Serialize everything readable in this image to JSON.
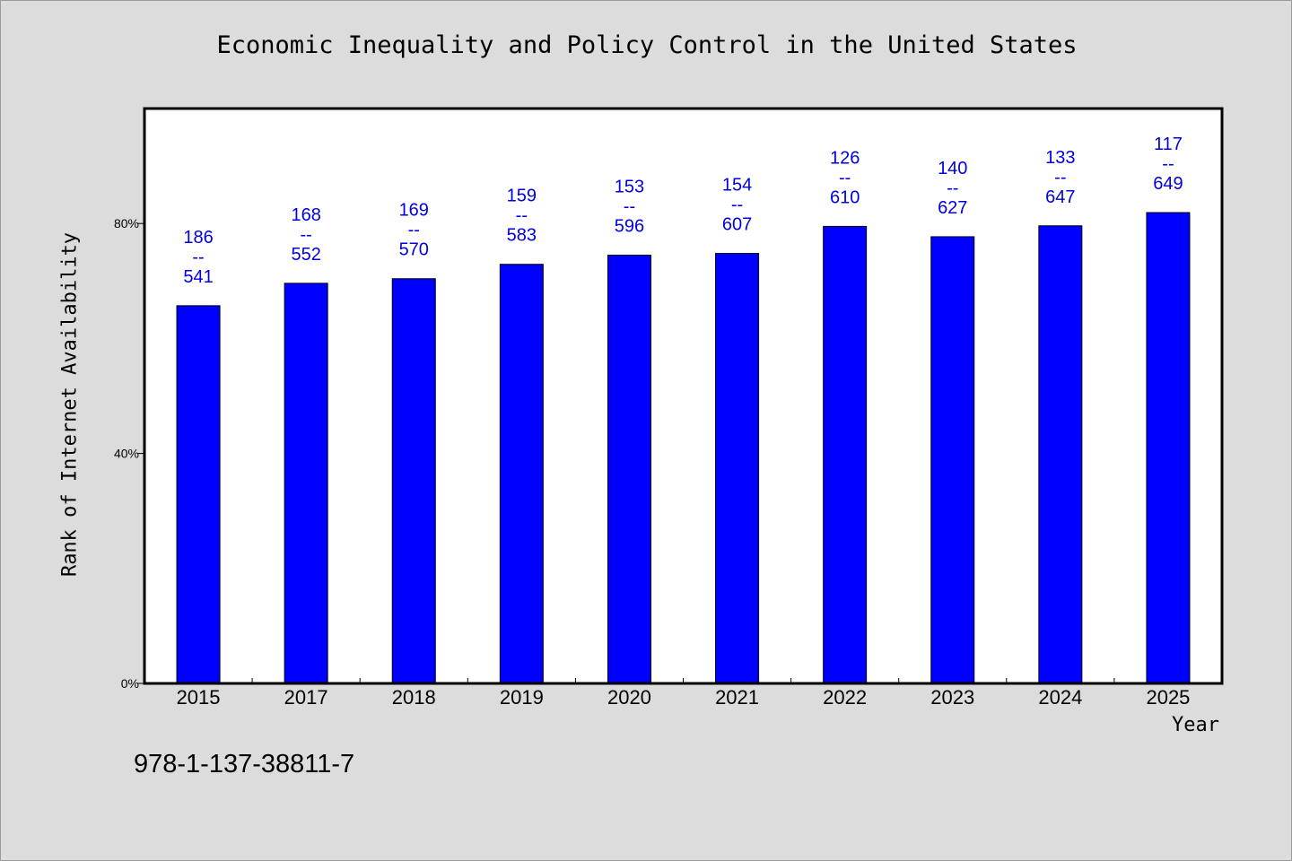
{
  "chart_data": {
    "type": "bar",
    "title": "Economic Inequality and Policy Control in the United States",
    "xlabel": "Year",
    "ylabel": "Rank of Internet Availability",
    "categories": [
      "2015",
      "2017",
      "2018",
      "2019",
      "2020",
      "2021",
      "2022",
      "2023",
      "2024",
      "2025"
    ],
    "series": [
      {
        "values": [
          65.7,
          69.6,
          70.4,
          72.9,
          74.5,
          74.8,
          79.5,
          77.7,
          79.6,
          81.9
        ]
      }
    ],
    "data_labels": [
      {
        "top": "186",
        "sep": "--",
        "bottom": "541"
      },
      {
        "top": "168",
        "sep": "--",
        "bottom": "552"
      },
      {
        "top": "169",
        "sep": "--",
        "bottom": "570"
      },
      {
        "top": "159",
        "sep": "--",
        "bottom": "583"
      },
      {
        "top": "153",
        "sep": "--",
        "bottom": "596"
      },
      {
        "top": "154",
        "sep": "--",
        "bottom": "607"
      },
      {
        "top": "126",
        "sep": "--",
        "bottom": "610"
      },
      {
        "top": "140",
        "sep": "--",
        "bottom": "627"
      },
      {
        "top": "133",
        "sep": "--",
        "bottom": "647"
      },
      {
        "top": "117",
        "sep": "--",
        "bottom": "649"
      }
    ],
    "yticks": [
      {
        "value": 0,
        "label": "0%"
      },
      {
        "value": 40,
        "label": "40%"
      },
      {
        "value": 80,
        "label": "80%"
      }
    ],
    "ylim": [
      0,
      100
    ],
    "grid": false,
    "legend": "none",
    "bar_color": "#0000ff",
    "label_color": "#0000e0",
    "plot_background": "#ffffff",
    "page_background": "#dcdcdc"
  },
  "footer": {
    "code": "978-1-137-38811-7"
  }
}
